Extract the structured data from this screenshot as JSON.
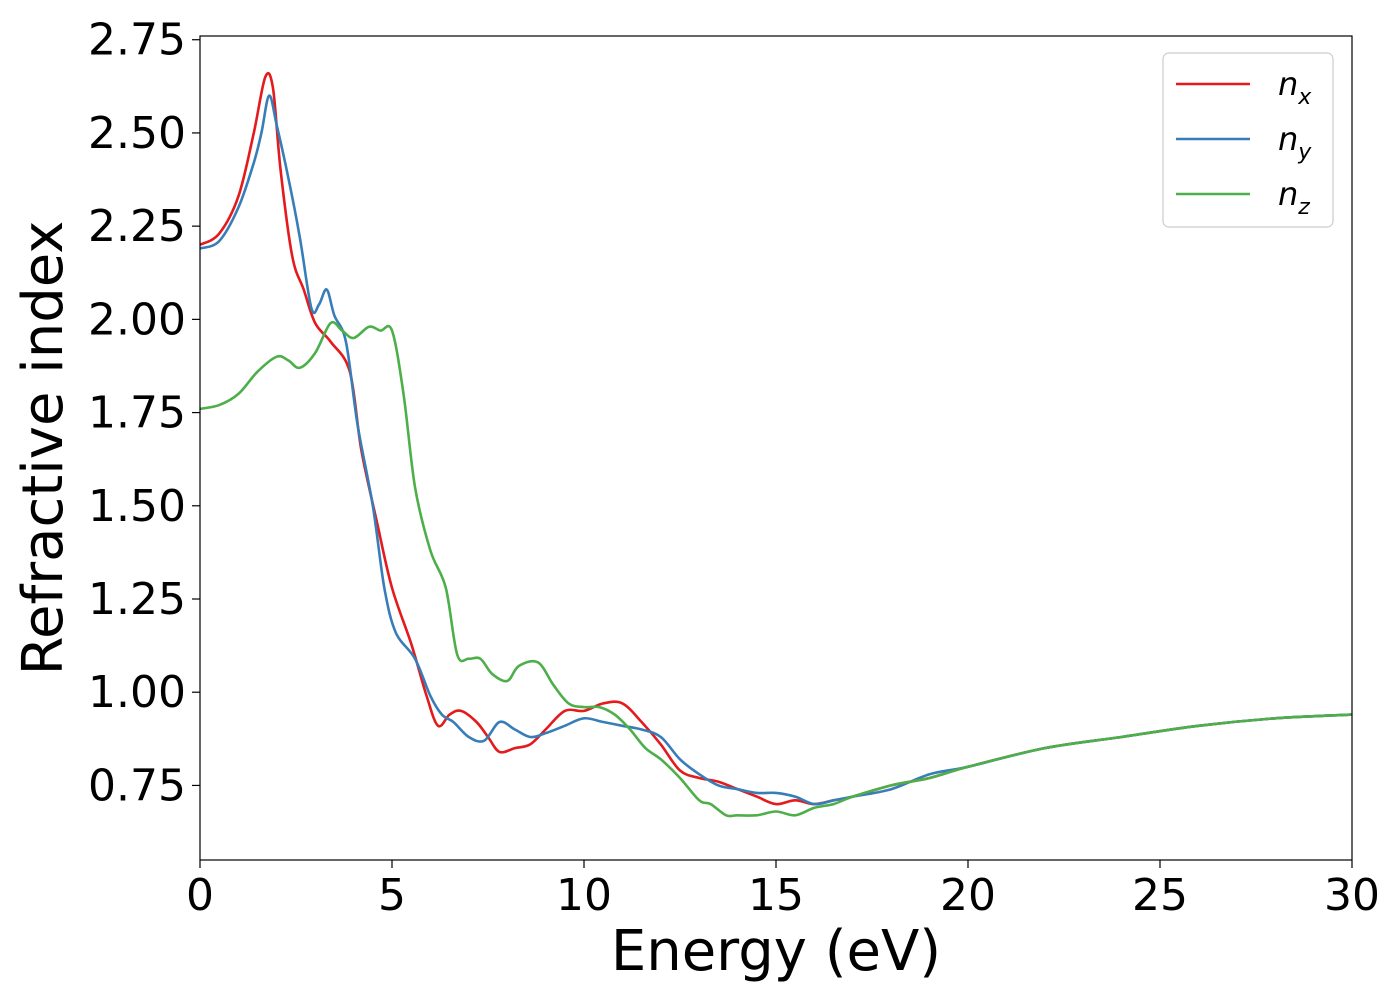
{
  "chart_data": {
    "type": "line",
    "title": "",
    "xlabel": "Energy (eV)",
    "ylabel": "Refractive index",
    "xlim": [
      0,
      30
    ],
    "ylim": [
      0.55,
      2.76
    ],
    "xticks": [
      0,
      5,
      10,
      15,
      20,
      25,
      30
    ],
    "xtick_labels": [
      "0",
      "5",
      "10",
      "15",
      "20",
      "25",
      "30"
    ],
    "yticks": [
      0.75,
      1.0,
      1.25,
      1.5,
      1.75,
      2.0,
      2.25,
      2.5,
      2.75
    ],
    "ytick_labels": [
      "0.75",
      "1.00",
      "1.25",
      "1.50",
      "1.75",
      "2.00",
      "2.25",
      "2.50",
      "2.75"
    ],
    "grid": false,
    "legend": "top-right",
    "series": [
      {
        "name": "n",
        "subscript": "x",
        "color": "#e41a1c",
        "points": [
          [
            0,
            2.2
          ],
          [
            0.5,
            2.23
          ],
          [
            1.0,
            2.33
          ],
          [
            1.4,
            2.5
          ],
          [
            1.7,
            2.65
          ],
          [
            1.9,
            2.62
          ],
          [
            2.1,
            2.4
          ],
          [
            2.4,
            2.17
          ],
          [
            2.7,
            2.08
          ],
          [
            3.0,
            1.99
          ],
          [
            3.4,
            1.94
          ],
          [
            3.9,
            1.86
          ],
          [
            4.2,
            1.65
          ],
          [
            4.6,
            1.46
          ],
          [
            5.0,
            1.28
          ],
          [
            5.5,
            1.13
          ],
          [
            5.9,
            0.99
          ],
          [
            6.2,
            0.91
          ],
          [
            6.5,
            0.94
          ],
          [
            6.8,
            0.95
          ],
          [
            7.2,
            0.92
          ],
          [
            7.5,
            0.88
          ],
          [
            7.8,
            0.84
          ],
          [
            8.2,
            0.85
          ],
          [
            8.6,
            0.86
          ],
          [
            9.0,
            0.9
          ],
          [
            9.5,
            0.95
          ],
          [
            10.0,
            0.95
          ],
          [
            10.5,
            0.97
          ],
          [
            11.0,
            0.97
          ],
          [
            11.5,
            0.92
          ],
          [
            12.0,
            0.86
          ],
          [
            12.5,
            0.79
          ],
          [
            13.0,
            0.77
          ],
          [
            13.5,
            0.76
          ],
          [
            14.0,
            0.74
          ],
          [
            14.5,
            0.72
          ],
          [
            15.0,
            0.7
          ],
          [
            15.5,
            0.71
          ],
          [
            16.0,
            0.7
          ],
          [
            16.5,
            0.71
          ],
          [
            17.0,
            0.72
          ],
          [
            18.0,
            0.75
          ],
          [
            19.0,
            0.77
          ],
          [
            20.0,
            0.8
          ],
          [
            22.0,
            0.85
          ],
          [
            24.0,
            0.88
          ],
          [
            26.0,
            0.91
          ],
          [
            28.0,
            0.93
          ],
          [
            30.0,
            0.94
          ]
        ]
      },
      {
        "name": "n",
        "subscript": "y",
        "color": "#377eb8",
        "points": [
          [
            0,
            2.19
          ],
          [
            0.5,
            2.21
          ],
          [
            1.0,
            2.3
          ],
          [
            1.4,
            2.42
          ],
          [
            1.6,
            2.5
          ],
          [
            1.8,
            2.6
          ],
          [
            2.0,
            2.52
          ],
          [
            2.3,
            2.38
          ],
          [
            2.6,
            2.22
          ],
          [
            2.9,
            2.03
          ],
          [
            3.1,
            2.04
          ],
          [
            3.3,
            2.08
          ],
          [
            3.5,
            2.01
          ],
          [
            3.8,
            1.94
          ],
          [
            4.1,
            1.72
          ],
          [
            4.5,
            1.5
          ],
          [
            4.8,
            1.28
          ],
          [
            5.1,
            1.16
          ],
          [
            5.6,
            1.09
          ],
          [
            6.0,
            0.99
          ],
          [
            6.3,
            0.94
          ],
          [
            6.6,
            0.92
          ],
          [
            7.0,
            0.88
          ],
          [
            7.4,
            0.87
          ],
          [
            7.8,
            0.92
          ],
          [
            8.2,
            0.9
          ],
          [
            8.6,
            0.88
          ],
          [
            9.0,
            0.89
          ],
          [
            9.5,
            0.91
          ],
          [
            10.0,
            0.93
          ],
          [
            10.5,
            0.92
          ],
          [
            11.0,
            0.91
          ],
          [
            11.5,
            0.9
          ],
          [
            12.0,
            0.88
          ],
          [
            12.5,
            0.82
          ],
          [
            13.0,
            0.78
          ],
          [
            13.5,
            0.75
          ],
          [
            14.0,
            0.74
          ],
          [
            14.5,
            0.73
          ],
          [
            15.0,
            0.73
          ],
          [
            15.5,
            0.72
          ],
          [
            16.0,
            0.7
          ],
          [
            16.5,
            0.71
          ],
          [
            17.0,
            0.72
          ],
          [
            18.0,
            0.74
          ],
          [
            19.0,
            0.78
          ],
          [
            20.0,
            0.8
          ],
          [
            22.0,
            0.85
          ],
          [
            24.0,
            0.88
          ],
          [
            26.0,
            0.91
          ],
          [
            28.0,
            0.93
          ],
          [
            30.0,
            0.94
          ]
        ]
      },
      {
        "name": "n",
        "subscript": "z",
        "color": "#4daf4a",
        "points": [
          [
            0,
            1.76
          ],
          [
            0.5,
            1.77
          ],
          [
            1.0,
            1.8
          ],
          [
            1.5,
            1.86
          ],
          [
            2.0,
            1.9
          ],
          [
            2.3,
            1.89
          ],
          [
            2.6,
            1.87
          ],
          [
            3.0,
            1.91
          ],
          [
            3.4,
            1.99
          ],
          [
            3.7,
            1.97
          ],
          [
            4.0,
            1.95
          ],
          [
            4.4,
            1.98
          ],
          [
            4.7,
            1.97
          ],
          [
            5.0,
            1.97
          ],
          [
            5.3,
            1.8
          ],
          [
            5.6,
            1.55
          ],
          [
            6.0,
            1.38
          ],
          [
            6.4,
            1.28
          ],
          [
            6.7,
            1.1
          ],
          [
            7.0,
            1.09
          ],
          [
            7.3,
            1.09
          ],
          [
            7.6,
            1.05
          ],
          [
            8.0,
            1.03
          ],
          [
            8.3,
            1.07
          ],
          [
            8.8,
            1.08
          ],
          [
            9.2,
            1.02
          ],
          [
            9.6,
            0.97
          ],
          [
            10.0,
            0.96
          ],
          [
            10.4,
            0.96
          ],
          [
            10.8,
            0.94
          ],
          [
            11.2,
            0.9
          ],
          [
            11.6,
            0.85
          ],
          [
            12.0,
            0.82
          ],
          [
            12.5,
            0.77
          ],
          [
            13.0,
            0.71
          ],
          [
            13.3,
            0.7
          ],
          [
            13.7,
            0.67
          ],
          [
            14.0,
            0.67
          ],
          [
            14.5,
            0.67
          ],
          [
            15.0,
            0.68
          ],
          [
            15.5,
            0.67
          ],
          [
            16.0,
            0.69
          ],
          [
            16.5,
            0.7
          ],
          [
            17.0,
            0.72
          ],
          [
            18.0,
            0.75
          ],
          [
            19.0,
            0.77
          ],
          [
            20.0,
            0.8
          ],
          [
            22.0,
            0.85
          ],
          [
            24.0,
            0.88
          ],
          [
            26.0,
            0.91
          ],
          [
            28.0,
            0.93
          ],
          [
            30.0,
            0.94
          ]
        ]
      }
    ]
  }
}
